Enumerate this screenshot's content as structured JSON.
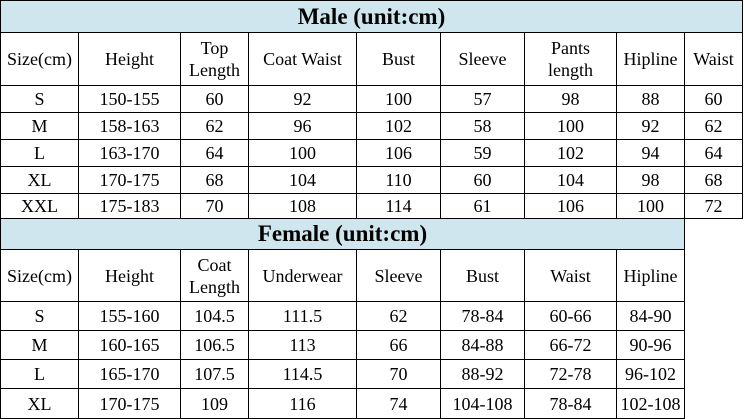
{
  "male": {
    "title": "Male  (unit:cm)",
    "headers": [
      "Size(cm)",
      "Height",
      "Top Length",
      "Coat Waist",
      "Bust",
      "Sleeve",
      "Pants length",
      "Hipline",
      "Waist"
    ],
    "rows": [
      [
        "S",
        "150-155",
        "60",
        "92",
        "100",
        "57",
        "98",
        "88",
        "60"
      ],
      [
        "M",
        "158-163",
        "62",
        "96",
        "102",
        "58",
        "100",
        "92",
        "62"
      ],
      [
        "L",
        "163-170",
        "64",
        "100",
        "106",
        "59",
        "102",
        "94",
        "64"
      ],
      [
        "XL",
        "170-175",
        "68",
        "104",
        "110",
        "60",
        "104",
        "98",
        "68"
      ],
      [
        "XXL",
        "175-183",
        "70",
        "108",
        "114",
        "61",
        "106",
        "100",
        "72"
      ]
    ]
  },
  "female": {
    "title": "Female (unit:cm)",
    "headers": [
      "Size(cm)",
      "Height",
      "Coat Length",
      "Underwear",
      "Sleeve",
      "Bust",
      "Waist",
      "Hipline"
    ],
    "rows": [
      [
        "S",
        "155-160",
        "104.5",
        "111.5",
        "62",
        "78-84",
        "60-66",
        "84-90"
      ],
      [
        "M",
        "160-165",
        "106.5",
        "113",
        "66",
        "84-88",
        "66-72",
        "90-96"
      ],
      [
        "L",
        "165-170",
        "107.5",
        "114.5",
        "70",
        "88-92",
        "72-78",
        "96-102"
      ],
      [
        "XL",
        "170-175",
        "109",
        "116",
        "74",
        "104-108",
        "78-84",
        "102-108"
      ]
    ]
  }
}
